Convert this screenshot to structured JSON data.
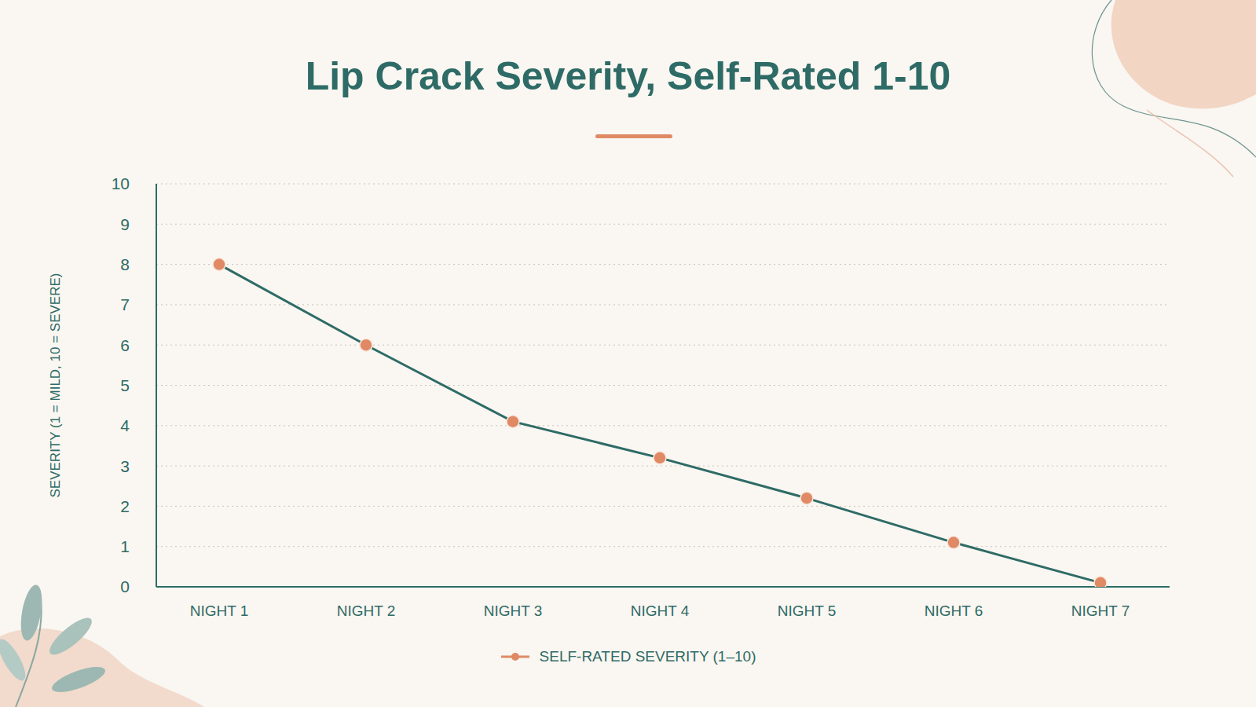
{
  "chart_data": {
    "type": "line",
    "title": "Lip Crack Severity, Self-Rated 1-10",
    "y_label": "SEVERITY (1 = MILD, 10 = SEVERE)",
    "categories": [
      "NIGHT 1",
      "NIGHT 2",
      "NIGHT 3",
      "NIGHT 4",
      "NIGHT 5",
      "NIGHT 6",
      "NIGHT 7"
    ],
    "series": [
      {
        "name": "SELF-RATED SEVERITY (1–10)",
        "color": "#2e6b66",
        "marker": "circle",
        "values": [
          8,
          6,
          4.1,
          3.2,
          2.2,
          1.1,
          0.1
        ]
      }
    ],
    "ylim": [
      0,
      10
    ],
    "yticks": [
      0,
      1,
      2,
      3,
      4,
      5,
      6,
      7,
      8,
      9,
      10
    ],
    "grid": true,
    "legend": "bottom"
  }
}
